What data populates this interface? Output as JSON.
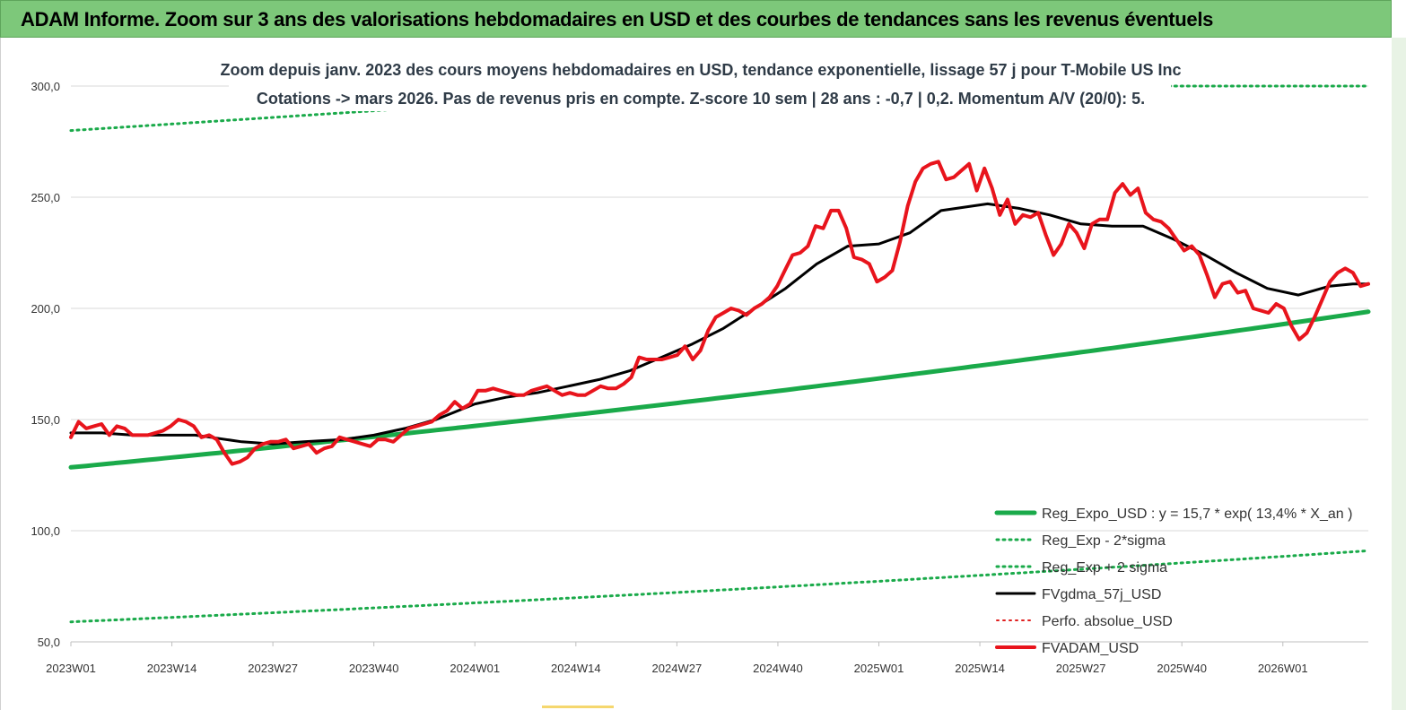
{
  "banner": {
    "title": "ADAM Informe. Zoom sur 3 ans des valorisations hebdomadaires en USD et des courbes de tendances sans les revenus éventuels",
    "background": "#7dc87a"
  },
  "chart_data": {
    "type": "line",
    "title_line1": "Zoom depuis janv. 2023 des cours moyens hebdomadaires en USD, tendance exponentielle, lissage 57 j pour T-Mobile US Inc",
    "title_line2": "Cotations -> mars 2026. Pas de revenus pris en compte. Z-score 10 sem | 28 ans : -0,7 | 0,2. Momentum A/V (20/0): 5.",
    "ylim": [
      50,
      300
    ],
    "yticks": [
      50,
      100,
      150,
      200,
      250,
      300
    ],
    "ytick_labels": [
      "50,0",
      "100,0",
      "150,0",
      "200,0",
      "250,0",
      "300,0"
    ],
    "xlim": [
      0,
      167
    ],
    "xtick_positions": [
      0,
      13,
      26,
      39,
      52,
      65,
      78,
      91,
      104,
      117,
      130,
      143,
      156
    ],
    "xtick_labels": [
      "2023W01",
      "2023W14",
      "2023W27",
      "2023W40",
      "2024W01",
      "2024W14",
      "2024W27",
      "2024W40",
      "2025W01",
      "2025W14",
      "2025W27",
      "2025W40",
      "2026W01"
    ],
    "grid": true,
    "legend_position": "bottom-right",
    "series": [
      {
        "name": "Reg_Expo_USD : y = 15,7 * exp( 13,4% * X_an )",
        "color": "#1aaa4a",
        "style": "solid",
        "width": 5,
        "start": 128.5,
        "end": 198.5,
        "kind": "exp"
      },
      {
        "name": "Reg_Exp - 2*sigma",
        "color": "#1aaa4a",
        "style": "dotted",
        "width": 3,
        "start": 59,
        "end": 91,
        "kind": "exp"
      },
      {
        "name": "Reg_Exp + 2 sigma",
        "color": "#1aaa4a",
        "style": "dotted",
        "width": 3,
        "start": 280,
        "end": 300,
        "kind": "exp-clipped"
      },
      {
        "name": "FVgdma_57j_USD",
        "color": "#000000",
        "style": "solid",
        "width": 3,
        "points": [
          [
            0,
            144
          ],
          [
            4,
            144
          ],
          [
            8,
            143
          ],
          [
            12,
            143
          ],
          [
            16,
            143
          ],
          [
            18,
            142
          ],
          [
            22,
            140
          ],
          [
            26,
            139
          ],
          [
            30,
            140
          ],
          [
            35,
            141
          ],
          [
            39,
            143
          ],
          [
            43,
            146
          ],
          [
            47,
            150
          ],
          [
            52,
            157
          ],
          [
            56,
            160
          ],
          [
            60,
            162
          ],
          [
            64,
            165
          ],
          [
            68,
            168
          ],
          [
            72,
            172
          ],
          [
            76,
            178
          ],
          [
            80,
            184
          ],
          [
            84,
            191
          ],
          [
            88,
            200
          ],
          [
            92,
            209
          ],
          [
            96,
            220
          ],
          [
            100,
            228
          ],
          [
            104,
            229
          ],
          [
            108,
            234
          ],
          [
            112,
            244
          ],
          [
            116,
            246
          ],
          [
            118,
            247
          ],
          [
            122,
            245
          ],
          [
            126,
            242
          ],
          [
            130,
            238
          ],
          [
            134,
            237
          ],
          [
            138,
            237
          ],
          [
            142,
            231
          ],
          [
            146,
            224
          ],
          [
            150,
            216
          ],
          [
            154,
            209
          ],
          [
            158,
            206
          ],
          [
            162,
            210
          ],
          [
            165,
            211
          ],
          [
            167,
            211
          ]
        ]
      },
      {
        "name": "Perfo. absolue_USD",
        "color": "#e02020",
        "style": "dotted",
        "width": 2,
        "points": []
      },
      {
        "name": "FVADAM_USD",
        "color": "#e8141c",
        "style": "solid",
        "width": 4,
        "points": [
          [
            0,
            142
          ],
          [
            1,
            149
          ],
          [
            2,
            146
          ],
          [
            3,
            147
          ],
          [
            4,
            148
          ],
          [
            5,
            143
          ],
          [
            6,
            147
          ],
          [
            7,
            146
          ],
          [
            8,
            143
          ],
          [
            9,
            143
          ],
          [
            10,
            143
          ],
          [
            11,
            144
          ],
          [
            12,
            145
          ],
          [
            13,
            147
          ],
          [
            14,
            150
          ],
          [
            15,
            149
          ],
          [
            16,
            147
          ],
          [
            17,
            142
          ],
          [
            18,
            143
          ],
          [
            19,
            141
          ],
          [
            20,
            135
          ],
          [
            21,
            130
          ],
          [
            22,
            131
          ],
          [
            23,
            133
          ],
          [
            24,
            137
          ],
          [
            25,
            139
          ],
          [
            26,
            140
          ],
          [
            27,
            140
          ],
          [
            28,
            141
          ],
          [
            29,
            137
          ],
          [
            30,
            138
          ],
          [
            31,
            139
          ],
          [
            32,
            135
          ],
          [
            33,
            137
          ],
          [
            34,
            138
          ],
          [
            35,
            142
          ],
          [
            36,
            141
          ],
          [
            37,
            140
          ],
          [
            38,
            139
          ],
          [
            39,
            138
          ],
          [
            40,
            141
          ],
          [
            41,
            141
          ],
          [
            42,
            140
          ],
          [
            43,
            143
          ],
          [
            44,
            146
          ],
          [
            45,
            147
          ],
          [
            46,
            148
          ],
          [
            47,
            149
          ],
          [
            48,
            152
          ],
          [
            49,
            154
          ],
          [
            50,
            158
          ],
          [
            51,
            155
          ],
          [
            52,
            157
          ],
          [
            53,
            163
          ],
          [
            54,
            163
          ],
          [
            55,
            164
          ],
          [
            56,
            163
          ],
          [
            57,
            162
          ],
          [
            58,
            161
          ],
          [
            59,
            161
          ],
          [
            60,
            163
          ],
          [
            61,
            164
          ],
          [
            62,
            165
          ],
          [
            63,
            163
          ],
          [
            64,
            161
          ],
          [
            65,
            162
          ],
          [
            66,
            161
          ],
          [
            67,
            161
          ],
          [
            68,
            163
          ],
          [
            69,
            165
          ],
          [
            70,
            164
          ],
          [
            71,
            164
          ],
          [
            72,
            166
          ],
          [
            73,
            169
          ],
          [
            74,
            178
          ],
          [
            75,
            177
          ],
          [
            76,
            177
          ],
          [
            77,
            177
          ],
          [
            78,
            178
          ],
          [
            79,
            179
          ],
          [
            80,
            183
          ],
          [
            81,
            177
          ],
          [
            82,
            181
          ],
          [
            83,
            190
          ],
          [
            84,
            196
          ],
          [
            85,
            198
          ],
          [
            86,
            200
          ],
          [
            87,
            199
          ],
          [
            88,
            197
          ],
          [
            89,
            200
          ],
          [
            90,
            202
          ],
          [
            91,
            205
          ],
          [
            92,
            210
          ],
          [
            93,
            217
          ],
          [
            94,
            224
          ],
          [
            95,
            225
          ],
          [
            96,
            228
          ],
          [
            97,
            237
          ],
          [
            98,
            236
          ],
          [
            99,
            244
          ],
          [
            100,
            244
          ],
          [
            101,
            236
          ],
          [
            102,
            223
          ],
          [
            103,
            222
          ],
          [
            104,
            220
          ],
          [
            105,
            212
          ],
          [
            106,
            214
          ],
          [
            107,
            217
          ],
          [
            108,
            230
          ],
          [
            109,
            246
          ],
          [
            110,
            257
          ],
          [
            111,
            263
          ],
          [
            112,
            265
          ],
          [
            113,
            266
          ],
          [
            114,
            258
          ],
          [
            115,
            259
          ],
          [
            116,
            262
          ],
          [
            117,
            265
          ],
          [
            118,
            253
          ],
          [
            119,
            263
          ],
          [
            120,
            254
          ],
          [
            121,
            242
          ],
          [
            122,
            249
          ],
          [
            123,
            238
          ],
          [
            124,
            242
          ],
          [
            125,
            241
          ],
          [
            126,
            243
          ],
          [
            127,
            233
          ],
          [
            128,
            224
          ],
          [
            129,
            229
          ],
          [
            130,
            238
          ],
          [
            131,
            234
          ],
          [
            132,
            227
          ],
          [
            133,
            238
          ],
          [
            134,
            240
          ],
          [
            135,
            240
          ],
          [
            136,
            252
          ],
          [
            137,
            256
          ],
          [
            138,
            251
          ],
          [
            139,
            254
          ],
          [
            140,
            243
          ],
          [
            141,
            240
          ],
          [
            142,
            239
          ],
          [
            143,
            236
          ],
          [
            144,
            231
          ],
          [
            145,
            226
          ],
          [
            146,
            228
          ],
          [
            147,
            224
          ],
          [
            148,
            215
          ],
          [
            149,
            205
          ],
          [
            150,
            211
          ],
          [
            151,
            212
          ],
          [
            152,
            207
          ],
          [
            153,
            208
          ],
          [
            154,
            200
          ],
          [
            155,
            199
          ],
          [
            156,
            198
          ],
          [
            157,
            202
          ],
          [
            158,
            200
          ],
          [
            159,
            192
          ],
          [
            160,
            186
          ],
          [
            161,
            189
          ],
          [
            162,
            196
          ],
          [
            163,
            204
          ],
          [
            164,
            212
          ],
          [
            165,
            216
          ],
          [
            166,
            218
          ],
          [
            167,
            216
          ],
          [
            168,
            210
          ],
          [
            169,
            211
          ]
        ]
      }
    ]
  }
}
